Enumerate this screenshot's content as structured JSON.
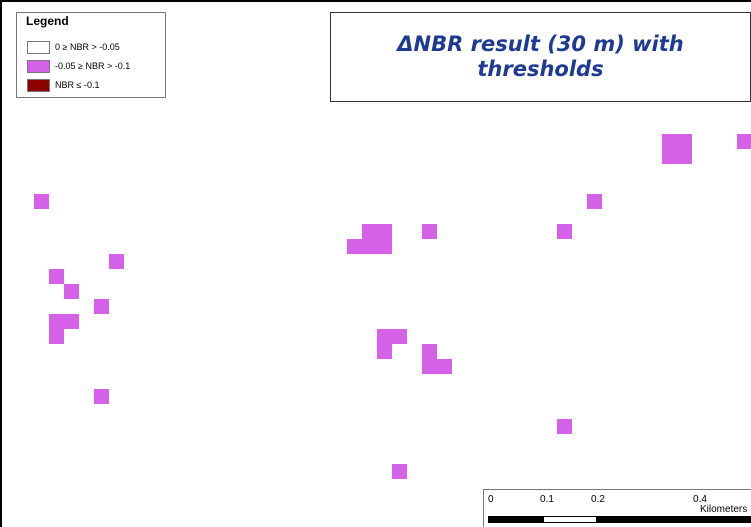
{
  "title": {
    "lines": [
      "ΔNBR result (30 m) with",
      "thresholds"
    ]
  },
  "legend": {
    "title": "Legend",
    "items": [
      {
        "label": "0 ≥ NBR > -0.05",
        "color": "#ffffff"
      },
      {
        "label": "-0.05 ≥ NBR > -0.1",
        "color": "#d561e8"
      },
      {
        "label": "NBR ≤ -0.1",
        "color": "#8b0000"
      }
    ]
  },
  "scale_bar": {
    "ticks": [
      "0",
      "0.1",
      "0.2",
      "0.4"
    ],
    "units": "Kilometers"
  },
  "colors": {
    "pixel_fill": "#d561e8",
    "title_text": "#1f3a93"
  }
}
